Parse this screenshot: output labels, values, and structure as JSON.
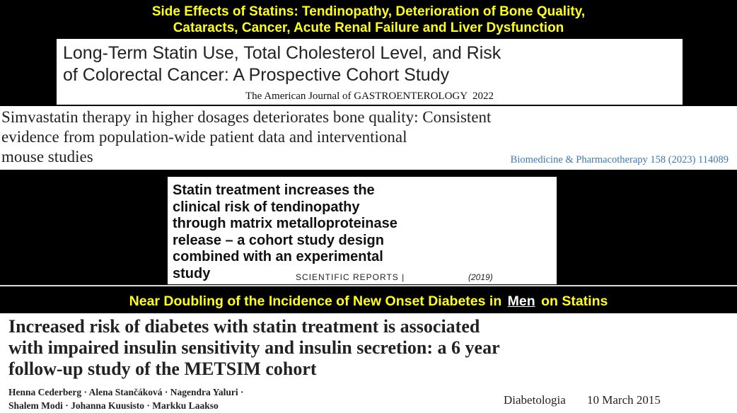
{
  "header": {
    "lines": [
      "Side Effects of Statins: Tendinopathy, Deterioration of Bone Quality,",
      "Cataracts, Cancer, Acute Renal Failure and Liver Dysfunction"
    ]
  },
  "papers": [
    {
      "title_lines": [
        "Long-Term Statin Use, Total Cholesterol Level, and Risk",
        "of Colorectal Cancer: A Prospective Cohort Study"
      ],
      "journal": "The American Journal of GASTROENTEROLOGY  2022"
    },
    {
      "title_lines": [
        "Simvastatin therapy in higher dosages deteriorates bone quality: Consistent",
        "evidence from population-wide patient data and interventional",
        "mouse studies"
      ],
      "journal": "Biomedicine & Pharmacotherapy 158 (2023) 114089"
    },
    {
      "title_lines": [
        "Statin treatment increases the",
        "clinical risk of tendinopathy",
        "through matrix metalloproteinase",
        "release – a cohort study design",
        "combined with an experimental",
        "study"
      ],
      "journal": "SCIENTIFIC REPORTS |",
      "year": "(2019)"
    },
    {
      "title_lines": [
        "Increased risk of diabetes with statin treatment is associated",
        "with impaired insulin sensitivity and insulin secretion: a 6 year",
        "follow-up study of the METSIM cohort"
      ],
      "author_lines": [
        "Henna Cederberg · Alena Stančáková · Nagendra Yaluri ·",
        "Shalem Modi · Johanna Kuusisto · Markku Laakso"
      ],
      "journal": "Diabetologia",
      "date": "10 March 2015"
    }
  ],
  "banner": {
    "before": "Near Doubling of the Incidence of New Onset Diabetes in",
    "emphasis": "Men",
    "after": "on Statins"
  }
}
